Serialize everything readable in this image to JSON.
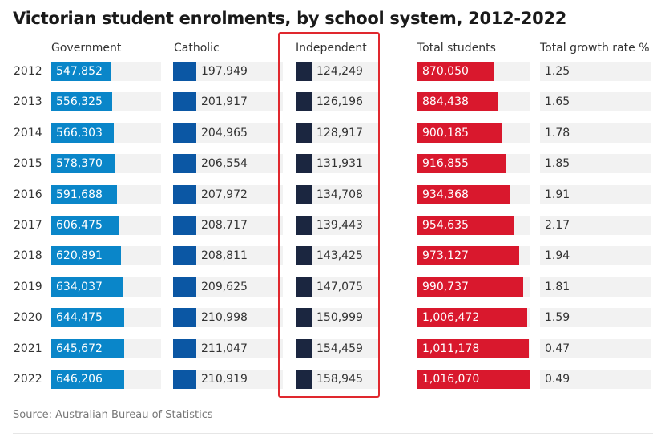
{
  "chart_data": {
    "type": "table",
    "title": "Victorian student enrolments, by school system, 2012-2022",
    "columns": [
      "Government",
      "Catholic",
      "Independent",
      "Total students",
      "Total growth rate %"
    ],
    "colors": {
      "Government": "#0a86c9",
      "Catholic": "#0b57a4",
      "Independent": "#1b2640",
      "Total students": "#d9182d"
    },
    "rows": [
      {
        "year": "2012",
        "government": "547,852",
        "catholic": "197,949",
        "independent": "124,249",
        "total": "870,050",
        "growth": "1.25"
      },
      {
        "year": "2013",
        "government": "556,325",
        "catholic": "201,917",
        "independent": "126,196",
        "total": "884,438",
        "growth": "1.65"
      },
      {
        "year": "2014",
        "government": "566,303",
        "catholic": "204,965",
        "independent": "128,917",
        "total": "900,185",
        "growth": "1.78"
      },
      {
        "year": "2015",
        "government": "578,370",
        "catholic": "206,554",
        "independent": "131,931",
        "total": "916,855",
        "growth": "1.85"
      },
      {
        "year": "2016",
        "government": "591,688",
        "catholic": "207,972",
        "independent": "134,708",
        "total": "934,368",
        "growth": "1.91"
      },
      {
        "year": "2017",
        "government": "606,475",
        "catholic": "208,717",
        "independent": "139,443",
        "total": "954,635",
        "growth": "2.17"
      },
      {
        "year": "2018",
        "government": "620,891",
        "catholic": "208,811",
        "independent": "143,425",
        "total": "973,127",
        "growth": "1.94"
      },
      {
        "year": "2019",
        "government": "634,037",
        "catholic": "209,625",
        "independent": "147,075",
        "total": "990,737",
        "growth": "1.81"
      },
      {
        "year": "2020",
        "government": "644,475",
        "catholic": "210,998",
        "independent": "150,999",
        "total": "1,006,472",
        "growth": "1.59"
      },
      {
        "year": "2021",
        "government": "645,672",
        "catholic": "211,047",
        "independent": "154,459",
        "total": "1,011,178",
        "growth": "0.47"
      },
      {
        "year": "2022",
        "government": "646,206",
        "catholic": "210,919",
        "independent": "158,945",
        "total": "1,016,070",
        "growth": "0.49"
      }
    ]
  },
  "source": "Source: Australian Bureau of Statistics"
}
